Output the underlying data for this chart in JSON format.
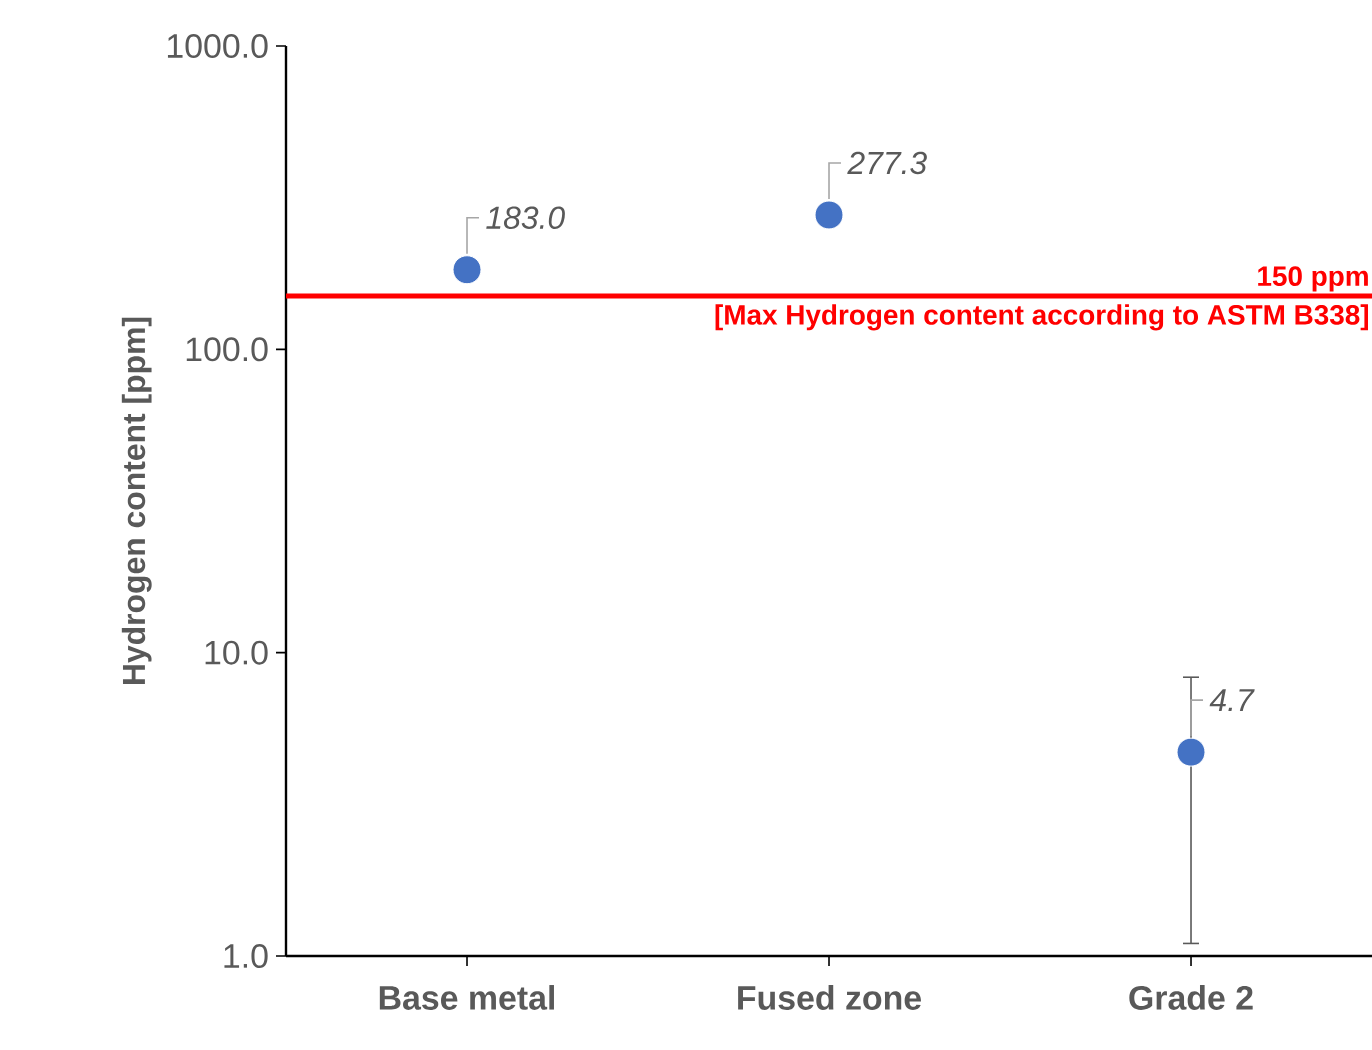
{
  "chart_data": {
    "type": "scatter",
    "ylabel": "Hydrogen content [ppm]",
    "categories": [
      "Base metal",
      "Fused zone",
      "Grade 2"
    ],
    "values": [
      183.0,
      277.3,
      4.7
    ],
    "value_labels": [
      "183.0",
      "277.3",
      "4.7"
    ],
    "errors": [
      null,
      null,
      3.6
    ],
    "color": "#4472c4",
    "marker": "circle",
    "log": "y",
    "ylim": [
      1,
      1000
    ],
    "yticks": [
      {
        "value": 1,
        "label": "1.0"
      },
      {
        "value": 10,
        "label": "10.0"
      },
      {
        "value": 100,
        "label": "100.0"
      },
      {
        "value": 1000,
        "label": "1000.0"
      }
    ],
    "grid": false,
    "ref_lines": [
      {
        "axis": "y",
        "value": 150,
        "label": "150 ppm",
        "color": "#ff0000"
      }
    ],
    "annotations": [
      "[Max Hydrogen content according to ASTM B338]"
    ]
  }
}
